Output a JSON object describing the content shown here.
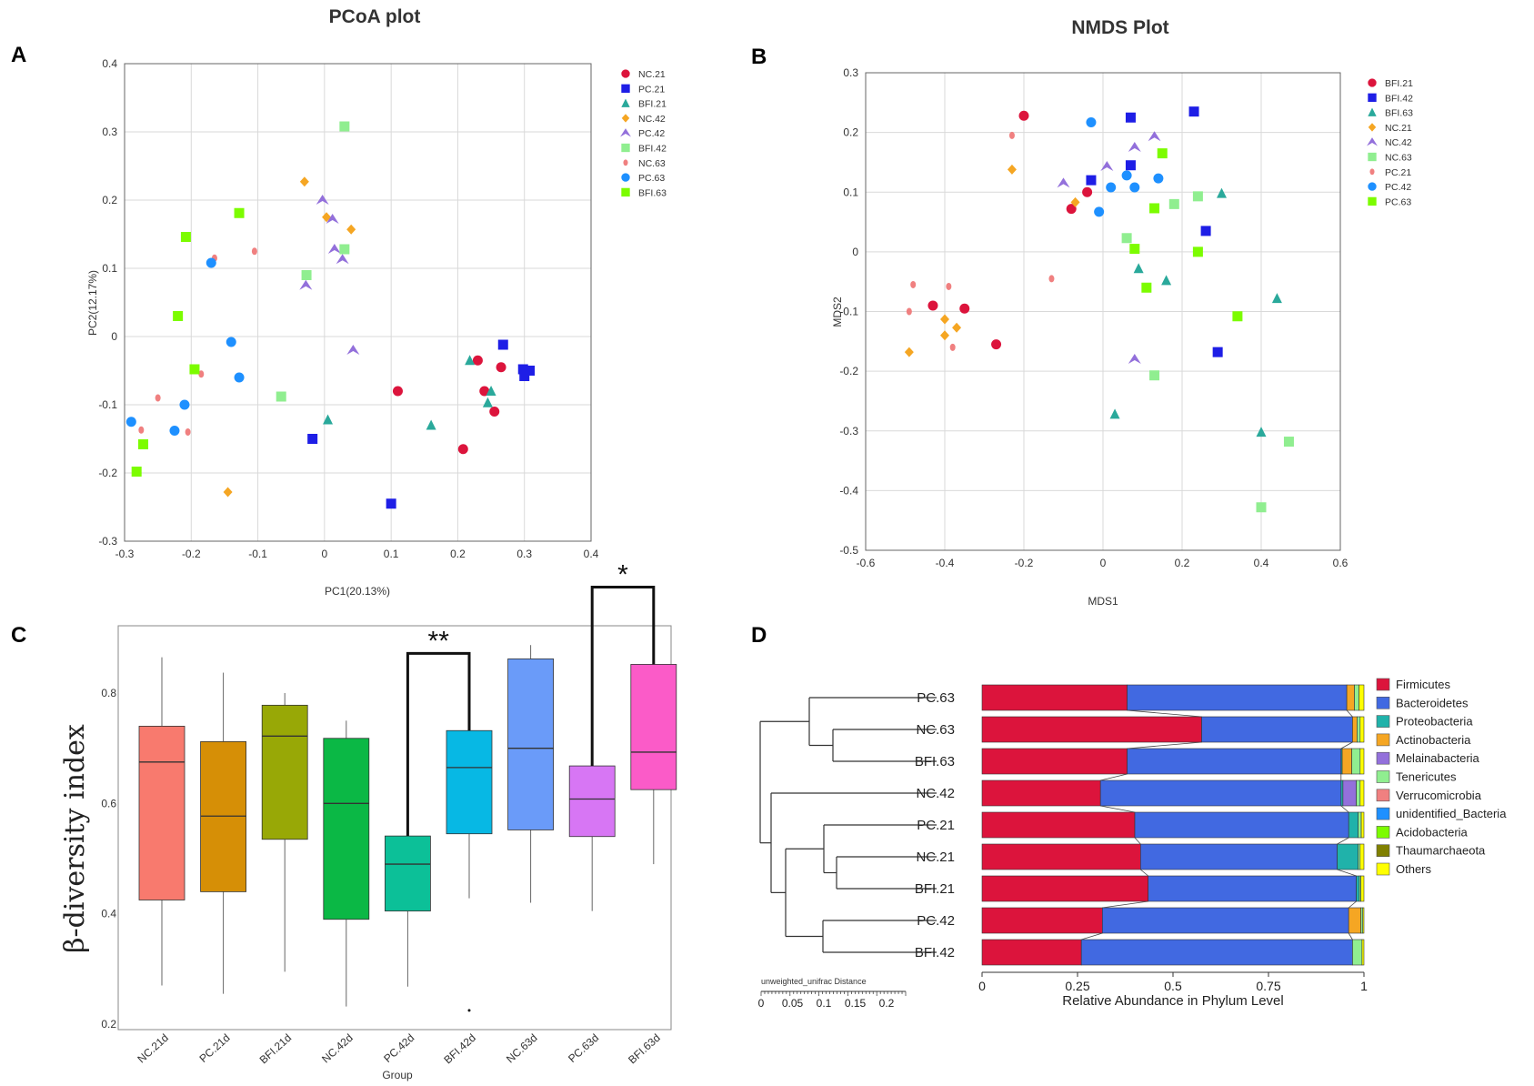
{
  "panels": {
    "A": "A",
    "B": "B",
    "C": "C",
    "D": "D"
  },
  "colors": {
    "red": "#dc143c",
    "blue": "#1e1ee6",
    "teal": "#2aa99b",
    "orange": "#f5a623",
    "purple": "#9370db",
    "lightgreen": "#90ee90",
    "salmon": "#f08080",
    "skyblue": "#1e90ff",
    "green": "#7cfc00"
  },
  "chart_data": [
    {
      "id": "A",
      "type": "scatter",
      "title": "PCoA plot",
      "xlabel": "PC1(20.13%)",
      "ylabel": "PC2(12.17%)",
      "xlim": [
        -0.3,
        0.4
      ],
      "ylim": [
        -0.3,
        0.4
      ],
      "xticks": [
        -0.3,
        -0.2,
        -0.1,
        0,
        0.1,
        0.2,
        0.3,
        0.4
      ],
      "xtick_labels": [
        "-0.3",
        "-0.2",
        "-0.1",
        "0",
        "0.1",
        "0.2",
        "0.3",
        "0.4"
      ],
      "yticks": [
        -0.3,
        -0.2,
        -0.1,
        0,
        0.1,
        0.2,
        0.3,
        0.4
      ],
      "ytick_labels": [
        "-0.3",
        "-0.2",
        "-0.1",
        "0",
        "0.1",
        "0.2",
        "0.3",
        "0.4"
      ],
      "series": [
        {
          "name": "NC.21",
          "marker": "circle",
          "color": "#dc143c",
          "points": [
            [
              0.11,
              -0.08
            ],
            [
              0.23,
              -0.035
            ],
            [
              0.265,
              -0.045
            ],
            [
              0.24,
              -0.08
            ],
            [
              0.255,
              -0.11
            ],
            [
              0.208,
              -0.165
            ]
          ]
        },
        {
          "name": "PC.21",
          "marker": "square",
          "color": "#1e1ee6",
          "points": [
            [
              0.268,
              -0.012
            ],
            [
              0.298,
              -0.048
            ],
            [
              0.308,
              -0.05
            ],
            [
              0.3,
              -0.058
            ],
            [
              -0.018,
              -0.15
            ],
            [
              0.1,
              -0.245
            ]
          ]
        },
        {
          "name": "BFI.21",
          "marker": "triangle",
          "color": "#2aa99b",
          "points": [
            [
              0.218,
              -0.035
            ],
            [
              0.25,
              -0.08
            ],
            [
              0.245,
              -0.097
            ],
            [
              0.16,
              -0.13
            ],
            [
              0.005,
              -0.122
            ]
          ]
        },
        {
          "name": "NC.42",
          "marker": "diamond",
          "color": "#f5a623",
          "points": [
            [
              -0.03,
              0.227
            ],
            [
              0.003,
              0.175
            ],
            [
              0.04,
              0.157
            ],
            [
              -0.145,
              -0.228
            ]
          ]
        },
        {
          "name": "PC.42",
          "marker": "triangle-open",
          "color": "#9370db",
          "points": [
            [
              -0.003,
              0.2
            ],
            [
              0.012,
              0.172
            ],
            [
              0.015,
              0.128
            ],
            [
              0.027,
              0.113
            ],
            [
              -0.028,
              0.075
            ],
            [
              0.043,
              -0.02
            ]
          ]
        },
        {
          "name": "BFI.42",
          "marker": "square",
          "color": "#90ee90",
          "points": [
            [
              0.03,
              0.308
            ],
            [
              0.03,
              0.128
            ],
            [
              -0.027,
              0.09
            ],
            [
              -0.065,
              -0.088
            ]
          ]
        },
        {
          "name": "NC.63",
          "marker": "circle-small",
          "color": "#f08080",
          "points": [
            [
              -0.165,
              0.115
            ],
            [
              -0.105,
              0.125
            ],
            [
              -0.185,
              -0.055
            ],
            [
              -0.25,
              -0.09
            ],
            [
              -0.275,
              -0.137
            ],
            [
              -0.205,
              -0.14
            ]
          ]
        },
        {
          "name": "PC.63",
          "marker": "circle",
          "color": "#1e90ff",
          "points": [
            [
              -0.17,
              0.108
            ],
            [
              -0.14,
              -0.008
            ],
            [
              -0.128,
              -0.06
            ],
            [
              -0.21,
              -0.1
            ],
            [
              -0.225,
              -0.138
            ],
            [
              -0.29,
              -0.125
            ]
          ]
        },
        {
          "name": "BFI.63",
          "marker": "square",
          "color": "#7cfc00",
          "points": [
            [
              -0.128,
              0.181
            ],
            [
              -0.208,
              0.146
            ],
            [
              -0.22,
              0.03
            ],
            [
              -0.195,
              -0.048
            ],
            [
              -0.272,
              -0.158
            ],
            [
              -0.282,
              -0.198
            ]
          ]
        }
      ]
    },
    {
      "id": "B",
      "type": "scatter",
      "title": "NMDS Plot",
      "xlabel": "MDS1",
      "ylabel": "MDS2",
      "xlim": [
        -0.6,
        0.6
      ],
      "ylim": [
        -0.5,
        0.3
      ],
      "xticks": [
        -0.6,
        -0.4,
        -0.2,
        0,
        0.2,
        0.4,
        0.6
      ],
      "xtick_labels": [
        "-0.6",
        "-0.4",
        "-0.2",
        "0",
        "0.2",
        "0.4",
        "0.6"
      ],
      "yticks": [
        -0.5,
        -0.4,
        -0.3,
        -0.2,
        -0.1,
        0,
        0.1,
        0.2,
        0.3
      ],
      "ytick_labels": [
        "-0.5",
        "-0.4",
        "-0.3",
        "-0.2",
        "-0.1",
        "0",
        "0.1",
        "0.2",
        "0.3"
      ],
      "series": [
        {
          "name": "BFI.21",
          "marker": "circle",
          "color": "#dc143c",
          "points": [
            [
              -0.2,
              0.228
            ],
            [
              -0.04,
              0.1
            ],
            [
              -0.08,
              0.072
            ],
            [
              -0.43,
              -0.09
            ],
            [
              -0.35,
              -0.095
            ],
            [
              -0.27,
              -0.155
            ]
          ]
        },
        {
          "name": "BFI.42",
          "marker": "square",
          "color": "#1e1ee6",
          "points": [
            [
              0.07,
              0.225
            ],
            [
              0.23,
              0.235
            ],
            [
              -0.03,
              0.12
            ],
            [
              0.07,
              0.145
            ],
            [
              0.26,
              0.035
            ],
            [
              0.29,
              -0.168
            ]
          ]
        },
        {
          "name": "BFI.63",
          "marker": "triangle",
          "color": "#2aa99b",
          "points": [
            [
              0.3,
              0.098
            ],
            [
              0.09,
              -0.028
            ],
            [
              0.16,
              -0.048
            ],
            [
              0.44,
              -0.078
            ],
            [
              0.03,
              -0.272
            ],
            [
              0.4,
              -0.302
            ]
          ]
        },
        {
          "name": "NC.21",
          "marker": "diamond",
          "color": "#f5a623",
          "points": [
            [
              -0.23,
              0.138
            ],
            [
              -0.07,
              0.083
            ],
            [
              -0.4,
              -0.113
            ],
            [
              -0.37,
              -0.127
            ],
            [
              -0.4,
              -0.14
            ],
            [
              -0.49,
              -0.168
            ]
          ]
        },
        {
          "name": "NC.42",
          "marker": "triangle-open",
          "color": "#9370db",
          "points": [
            [
              0.13,
              0.193
            ],
            [
              0.08,
              0.175
            ],
            [
              -0.1,
              0.115
            ],
            [
              0.01,
              0.143
            ],
            [
              0.08,
              -0.18
            ]
          ]
        },
        {
          "name": "NC.63",
          "marker": "square",
          "color": "#90ee90",
          "points": [
            [
              0.06,
              0.023
            ],
            [
              0.18,
              0.08
            ],
            [
              0.24,
              0.093
            ],
            [
              0.13,
              -0.207
            ],
            [
              0.47,
              -0.318
            ],
            [
              0.4,
              -0.428
            ]
          ]
        },
        {
          "name": "PC.21",
          "marker": "circle-small",
          "color": "#f08080",
          "points": [
            [
              -0.23,
              0.195
            ],
            [
              -0.13,
              -0.045
            ],
            [
              -0.48,
              -0.055
            ],
            [
              -0.39,
              -0.058
            ],
            [
              -0.49,
              -0.1
            ],
            [
              -0.38,
              -0.16
            ]
          ]
        },
        {
          "name": "PC.42",
          "marker": "circle",
          "color": "#1e90ff",
          "points": [
            [
              -0.03,
              0.217
            ],
            [
              0.02,
              0.108
            ],
            [
              0.06,
              0.128
            ],
            [
              0.08,
              0.108
            ],
            [
              0.14,
              0.123
            ],
            [
              -0.01,
              0.067
            ]
          ]
        },
        {
          "name": "PC.63",
          "marker": "square",
          "color": "#7cfc00",
          "points": [
            [
              0.15,
              0.165
            ],
            [
              0.13,
              0.073
            ],
            [
              0.08,
              0.005
            ],
            [
              0.11,
              -0.06
            ],
            [
              0.24,
              0.0
            ],
            [
              0.34,
              -0.108
            ]
          ]
        }
      ]
    },
    {
      "id": "C",
      "type": "box",
      "title": "",
      "ylabel": "β-diversity index",
      "xlabel": "Group",
      "ylim": [
        0.2,
        0.9
      ],
      "yticks": [
        0.2,
        0.4,
        0.6,
        0.8
      ],
      "ytick_labels": [
        "0.2",
        "0.4",
        "0.6",
        "0.8"
      ],
      "categories": [
        "NC.21d",
        "PC.21d",
        "BFI.21d",
        "NC.42d",
        "PC.42d",
        "BFI.42d",
        "NC.63d",
        "PC.63d",
        "BFI.63d"
      ],
      "boxes": [
        {
          "group": "NC.21d",
          "color": "#f87a6e",
          "min": 0.27,
          "q1": 0.425,
          "median": 0.675,
          "q3": 0.74,
          "max": 0.865
        },
        {
          "group": "PC.21d",
          "color": "#d68f06",
          "min": 0.255,
          "q1": 0.44,
          "median": 0.577,
          "q3": 0.712,
          "max": 0.837
        },
        {
          "group": "BFI.21d",
          "color": "#98a806",
          "min": 0.295,
          "q1": 0.535,
          "median": 0.722,
          "q3": 0.778,
          "max": 0.8
        },
        {
          "group": "NC.42d",
          "color": "#0bb845",
          "min": 0.232,
          "q1": 0.39,
          "median": 0.6,
          "q3": 0.718,
          "max": 0.75
        },
        {
          "group": "PC.42d",
          "color": "#0cc098",
          "min": 0.268,
          "q1": 0.405,
          "median": 0.49,
          "q3": 0.541,
          "max": 0.55
        },
        {
          "group": "BFI.42d",
          "color": "#07b8e4",
          "min": 0.428,
          "q1": 0.545,
          "median": 0.665,
          "q3": 0.732,
          "max": 0.732
        },
        {
          "group": "NC.63d",
          "color": "#6a9bf9",
          "min": 0.42,
          "q1": 0.552,
          "median": 0.7,
          "q3": 0.862,
          "max": 0.887
        },
        {
          "group": "PC.63d",
          "color": "#d776f4",
          "min": 0.405,
          "q1": 0.54,
          "median": 0.608,
          "q3": 0.668,
          "max": 0.668
        },
        {
          "group": "BFI.63d",
          "color": "#fb5bc8",
          "min": 0.49,
          "q1": 0.625,
          "median": 0.693,
          "q3": 0.852,
          "max": 0.852
        }
      ],
      "outliers": [
        {
          "group": "BFI.42d",
          "value": 0.225
        }
      ],
      "significance": [
        {
          "from": "PC.42d",
          "to": "BFI.42d",
          "label": "**"
        },
        {
          "from": "PC.63d",
          "to": "BFI.63d",
          "label": "*"
        }
      ]
    },
    {
      "id": "D",
      "type": "stacked-bar",
      "xlabel": "Relative Abundance in Phylum Level",
      "xlim": [
        0,
        1
      ],
      "xticks": [
        0,
        0.25,
        0.5,
        0.75,
        1
      ],
      "xtick_labels": [
        "0",
        "0.25",
        "0.5",
        "0.75",
        "1"
      ],
      "dendrogram_label": "unweighted_unifrac Distance",
      "dendrogram_ticks": [
        "0",
        "0.05",
        "0.1",
        "0.15",
        "0.2"
      ],
      "categories": [
        "PC.63",
        "NC.63",
        "BFI.63",
        "NC.42",
        "PC.21",
        "NC.21",
        "BFI.21",
        "PC.42",
        "BFI.42"
      ],
      "phyla": [
        "Firmicutes",
        "Bacteroidetes",
        "Proteobacteria",
        "Actinobacteria",
        "Melainabacteria",
        "Tenericutes",
        "Verrucomicrobia",
        "unidentified_Bacteria",
        "Acidobacteria",
        "Thaumarchaeota",
        "Others"
      ],
      "phyla_colors": [
        "#dc143c",
        "#4169e1",
        "#20b2aa",
        "#f5a623",
        "#9370db",
        "#90ee90",
        "#f08080",
        "#1e90ff",
        "#7cfc00",
        "#808000",
        "#ffff00"
      ],
      "values": [
        [
          0.38,
          0.575,
          0.0,
          0.02,
          0.0,
          0.012,
          0.0,
          0.0,
          0.0,
          0.0,
          0.013
        ],
        [
          0.575,
          0.395,
          0.0,
          0.012,
          0.0,
          0.008,
          0.0,
          0.0,
          0.0,
          0.0,
          0.01
        ],
        [
          0.38,
          0.56,
          0.003,
          0.025,
          0.0,
          0.022,
          0.0,
          0.0,
          0.0,
          0.0,
          0.01
        ],
        [
          0.31,
          0.63,
          0.005,
          0.0,
          0.035,
          0.01,
          0.0,
          0.0,
          0.0,
          0.0,
          0.01
        ],
        [
          0.4,
          0.56,
          0.025,
          0.0,
          0.0,
          0.008,
          0.0,
          0.0,
          0.0,
          0.0,
          0.007
        ],
        [
          0.415,
          0.515,
          0.055,
          0.0,
          0.0,
          0.005,
          0.0,
          0.0,
          0.0,
          0.0,
          0.01
        ],
        [
          0.435,
          0.545,
          0.008,
          0.0,
          0.0,
          0.004,
          0.0,
          0.0,
          0.0,
          0.0,
          0.008
        ],
        [
          0.315,
          0.645,
          0.0,
          0.032,
          0.0,
          0.005,
          0.0,
          0.0,
          0.0,
          0.0,
          0.003
        ],
        [
          0.26,
          0.71,
          0.0,
          0.0,
          0.0,
          0.025,
          0.0,
          0.0,
          0.0,
          0.0,
          0.005
        ]
      ]
    }
  ]
}
